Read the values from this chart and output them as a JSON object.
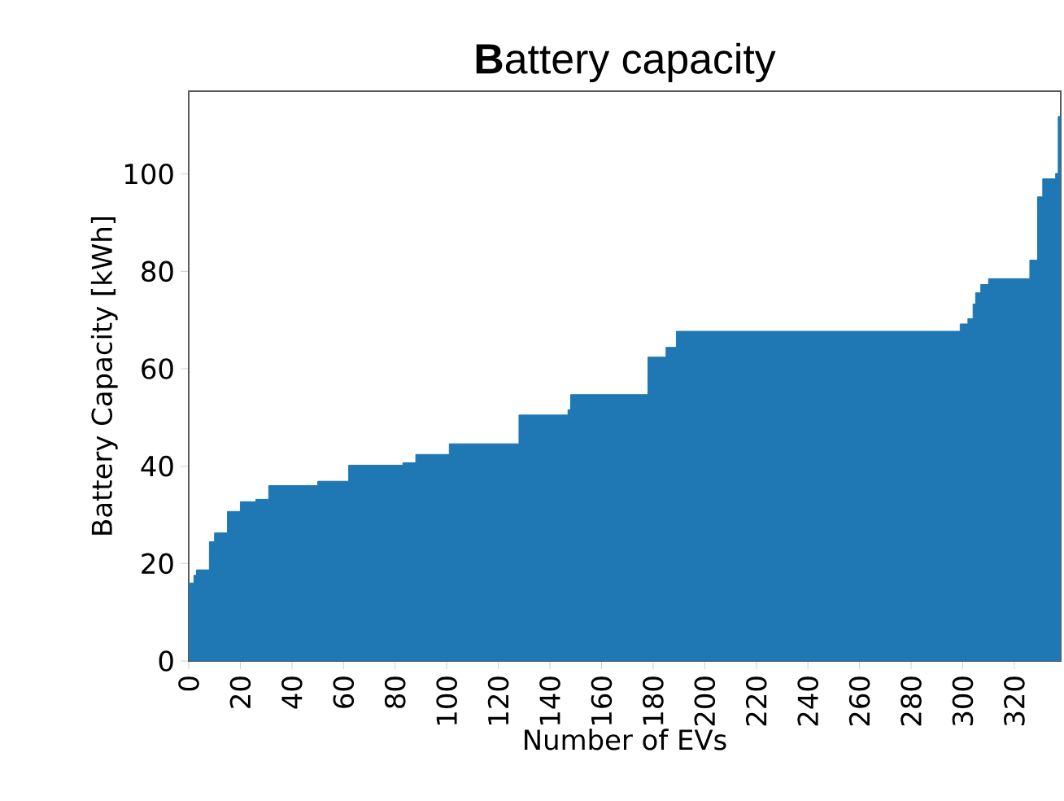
{
  "chart_data": {
    "type": "area",
    "title": "**B**attery capacity",
    "xlabel": "Number of EVs",
    "ylabel": "Battery Capacity [kWh]",
    "x": [
      0,
      2,
      3,
      8,
      10,
      15,
      20,
      26,
      31,
      50,
      62,
      83,
      88,
      101,
      128,
      147,
      148,
      178,
      185,
      189,
      299,
      302,
      304,
      305,
      307,
      310,
      326,
      329,
      331,
      336,
      337
    ],
    "values": [
      16.0,
      17.6,
      18.7,
      24.5,
      26.3,
      30.7,
      32.7,
      33.2,
      36.0,
      36.9,
      40.2,
      40.7,
      42.4,
      44.6,
      50.5,
      51.6,
      54.7,
      62.4,
      64.4,
      67.7,
      69.2,
      70.3,
      73.3,
      75.6,
      77.3,
      78.5,
      82.3,
      95.3,
      99.0,
      100.1,
      111.8
    ],
    "color": "#1f77b4",
    "xlim": [
      0,
      338
    ],
    "ylim": [
      0,
      117
    ],
    "xticks": [
      0,
      20,
      40,
      60,
      80,
      100,
      120,
      140,
      160,
      180,
      200,
      220,
      240,
      260,
      280,
      300,
      320
    ],
    "yticks": [
      0,
      20,
      40,
      60,
      80,
      100
    ]
  }
}
